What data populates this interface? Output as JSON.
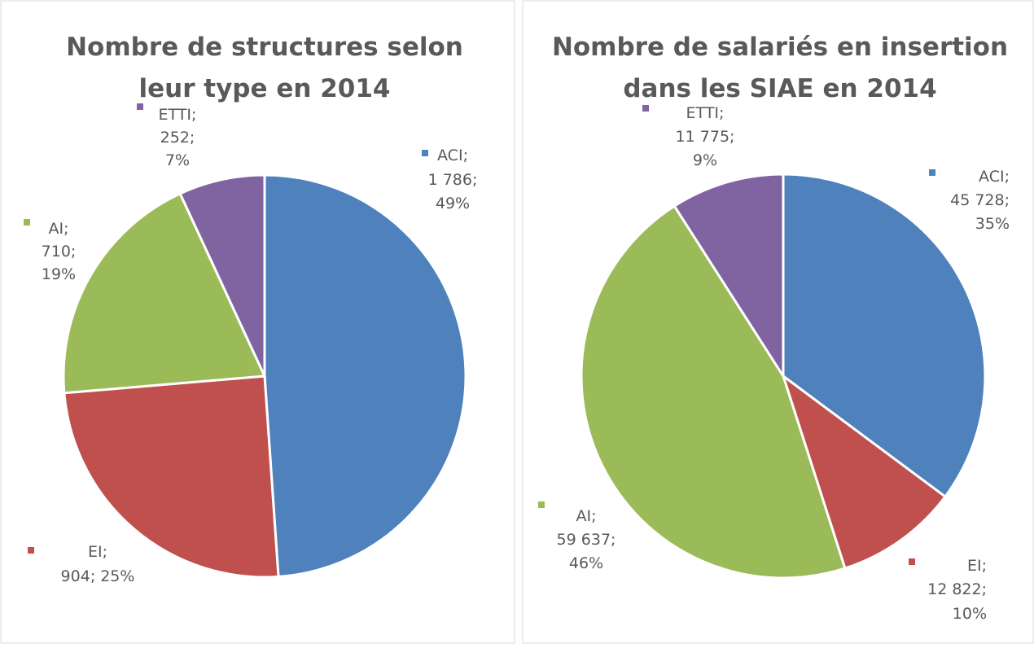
{
  "chart_data": [
    {
      "type": "pie",
      "title": [
        "Nombre de structures selon",
        "leur type en 2014"
      ],
      "categories": [
        "ACI",
        "EI",
        "AI",
        "ETTI"
      ],
      "separator": ";",
      "values": [
        1786,
        904,
        710,
        252
      ],
      "value_labels": [
        "1 786",
        "904",
        "710",
        "252"
      ],
      "percents": [
        49,
        25,
        19,
        7
      ],
      "percent_labels": [
        "49%",
        "25%",
        "19%",
        "7%"
      ],
      "colors": [
        "#4f81bd",
        "#c0504d",
        "#9bbb59",
        "#8064a2"
      ]
    },
    {
      "type": "pie",
      "title": [
        "Nombre de salariés en insertion",
        "dans les SIAE en 2014"
      ],
      "categories": [
        "ACI",
        "EI",
        "AI",
        "ETTI"
      ],
      "separator": ";",
      "values": [
        45728,
        12822,
        59637,
        11775
      ],
      "value_labels": [
        "45 728",
        "12 822",
        "59 637",
        "11 775"
      ],
      "percents": [
        35,
        10,
        46,
        9
      ],
      "percent_labels": [
        "35%",
        "10%",
        "46%",
        "9%"
      ],
      "colors": [
        "#4f81bd",
        "#c0504d",
        "#9bbb59",
        "#8064a2"
      ]
    }
  ]
}
